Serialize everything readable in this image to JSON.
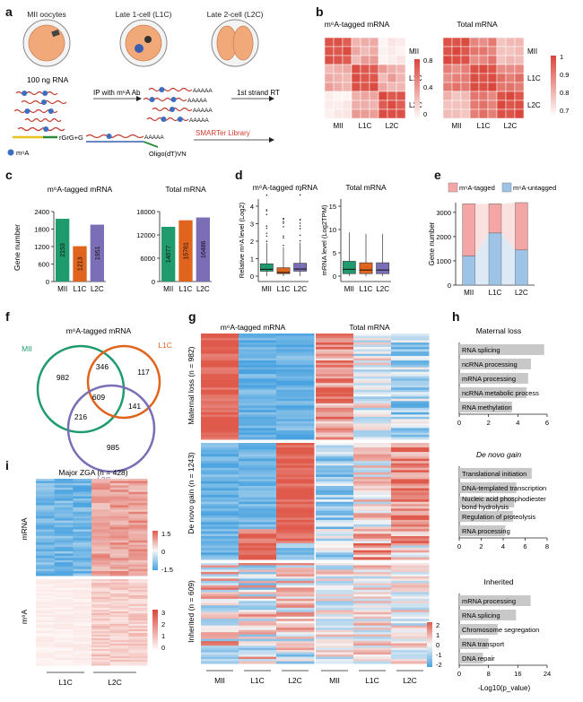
{
  "panel_letters": [
    "a",
    "b",
    "c",
    "d",
    "e",
    "f",
    "g",
    "h",
    "i"
  ],
  "panel_a": {
    "stages": [
      "MII oocytes",
      "Late 1-cell (L1C)",
      "Late 2-cell (L2C)"
    ],
    "rna_amount": "100 ng RNA",
    "ip_step": "IP with m⁶A Ab",
    "rt_step": "1st strand RT",
    "polyA": "AAAAA",
    "rgrg": "rGrG+G",
    "oligo": "Oligo(dT)VN",
    "library": "SMARTer Library",
    "m6a_legend": "m⁶A",
    "colors": {
      "cell": "#f2a97a",
      "nucleus": "#3b5fb0",
      "rna": "#c0392b",
      "m6a_dot": "#3b6fc4",
      "library_text": "#d43c2c"
    }
  },
  "panel_b": {
    "titles": [
      "m⁶A-tagged mRNA",
      "Total mRNA"
    ],
    "row_labels": [
      "MII",
      "L1C",
      "L2C"
    ],
    "col_labels": [
      "MII",
      "L1C",
      "L2C"
    ],
    "scale_left": [
      "0.8",
      "0.4",
      "0"
    ],
    "scale_right": [
      "1",
      "0.9",
      "0.8",
      "0.7"
    ]
  },
  "panel_c": {
    "ylabel": "Gene number",
    "chart_data": [
      {
        "type": "bar",
        "title": "m⁶A-tagged mRNA",
        "categories": [
          "MII",
          "L1C",
          "L2C"
        ],
        "values": [
          2153,
          1213,
          1951
        ],
        "ylim": [
          0,
          2400
        ],
        "yticks": [
          0,
          600,
          1200,
          1800,
          2400
        ],
        "ylabel": "Gene number"
      },
      {
        "type": "bar",
        "title": "Total mRNA",
        "categories": [
          "MII",
          "L1C",
          "L2C"
        ],
        "values": [
          14077,
          15761,
          16486
        ],
        "ylim": [
          0,
          18000
        ],
        "yticks": [
          0,
          6000,
          12000,
          18000
        ]
      }
    ],
    "colors": [
      "#1f9b6e",
      "#e0641e",
      "#7b6db6"
    ]
  },
  "panel_d": {
    "titles": [
      "m⁶A-tagged mRNA",
      "Total mRNA"
    ],
    "ylabels": [
      "Relative m⁶A level (Log2)",
      "mRNA level (Log2TPM)"
    ],
    "categories": [
      "MII",
      "L1C",
      "L2C"
    ],
    "left_yticks": [
      "0",
      "1",
      "2",
      "3",
      "4"
    ],
    "right_yticks": [
      "0",
      "5",
      "10",
      "15"
    ]
  },
  "panel_e": {
    "legend": [
      "m⁶A-tagged",
      "m⁶A-untagged"
    ],
    "ylabel": "Gene number",
    "chart_data": {
      "type": "bar",
      "categories": [
        "MII",
        "L1C",
        "L2C"
      ],
      "series": [
        {
          "name": "m⁶A-untagged",
          "values": [
            1200,
            2150,
            1450
          ]
        },
        {
          "name": "m⁶A-tagged",
          "values": [
            2150,
            1200,
            1950
          ]
        }
      ],
      "ylim": [
        0,
        3400
      ],
      "yticks": [
        0,
        1000,
        2000,
        3000
      ]
    },
    "colors": {
      "tagged": "#f4a5a5",
      "untagged": "#9dc3e6"
    }
  },
  "panel_f": {
    "title": "m⁶A-tagged mRNA",
    "sets": [
      "MII",
      "L1C",
      "L2C"
    ],
    "set_colors": [
      "#1f9b6e",
      "#e0641e",
      "#7b6db6"
    ],
    "counts": {
      "mii_only": "982",
      "l1c_only": "117",
      "l2c_only": "985",
      "mii_l1c": "346",
      "mii_l2c": "216",
      "l1c_l2c": "141",
      "all": "609"
    }
  },
  "panel_g": {
    "titles": [
      "m⁶A-tagged mRNA",
      "Total mRNA"
    ],
    "row_groups": [
      "Maternal loss (n = 982)",
      "De novo gain (n = 1243)",
      "Inherited (n = 609)"
    ],
    "col_labels": [
      "MII",
      "L1C",
      "L2C",
      "MII",
      "L1C",
      "L2C"
    ],
    "scale": [
      "2",
      "1",
      "0",
      "-1",
      "-2"
    ]
  },
  "panel_h": {
    "groups": [
      {
        "title": "Maternal loss",
        "terms": [
          "RNA splicing",
          "ncRNA processing",
          "mRNA processing",
          "ncRNA metabolic process",
          "RNA methylation"
        ],
        "values": [
          5.8,
          4.9,
          4.7,
          4.6,
          3.6
        ],
        "ticks": [
          "0",
          "2",
          "4",
          "6"
        ],
        "max": 6
      },
      {
        "title": "De novo gain",
        "terms": [
          "Translational initiation",
          "DNA-templated transcription",
          "Nucleic acid phosphodiester bond hydrolysis",
          "Regulation of proteolysis",
          "RNA processing"
        ],
        "values": [
          6.6,
          5.2,
          5.0,
          4.9,
          4.2
        ],
        "ticks": [
          "0",
          "2",
          "4",
          "6",
          "8"
        ],
        "max": 8
      },
      {
        "title": "Inherited",
        "terms": [
          "mRNA processing",
          "RNA splicing",
          "Chromosome segregation",
          "RNA transport",
          "DNA repair"
        ],
        "values": [
          19.5,
          15.5,
          10.5,
          8.0,
          6.5
        ],
        "ticks": [
          "0",
          "8",
          "16",
          "24"
        ],
        "max": 24
      }
    ],
    "xlabel": "-Log10(p_value)"
  },
  "panel_i": {
    "title": "Major ZGA (n = 428)",
    "row_labels": [
      "mRNA",
      "m⁶A"
    ],
    "col_labels": [
      "L1C",
      "L2C"
    ],
    "scale_top": [
      "1.5",
      "0",
      "-1.5"
    ],
    "scale_bottom": [
      "3",
      "2",
      "1",
      "0"
    ]
  }
}
